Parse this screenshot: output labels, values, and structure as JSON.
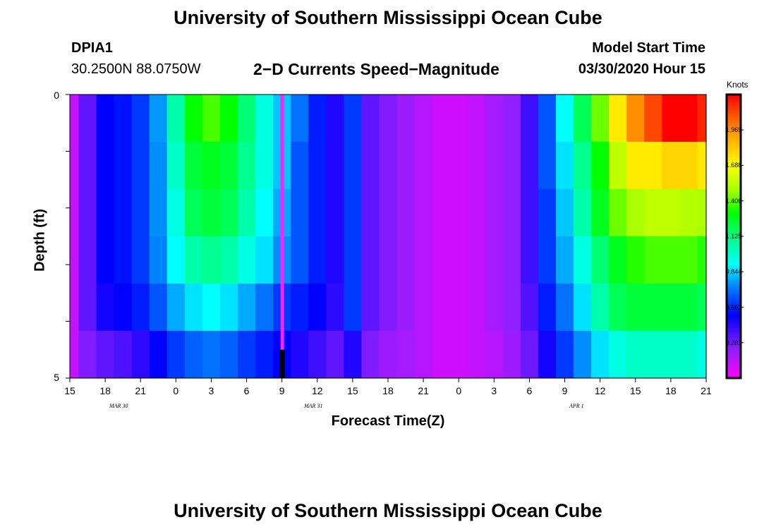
{
  "header": {
    "title": "University of Southern Mississippi Ocean Cube",
    "station": "DPIA1",
    "coords": "30.2500N 88.0750W",
    "subtitle": "2−D Currents Speed−Magnitude",
    "model_label": "Model Start Time",
    "model_time": "03/30/2020 Hour 15"
  },
  "footer": {
    "title": "University of Southern Mississippi Ocean Cube"
  },
  "colors": {
    "scale": [
      "#ff00ff",
      "#9020ff",
      "#0000ff",
      "#0080ff",
      "#00ffff",
      "#00ff80",
      "#00ff00",
      "#a0ff00",
      "#ffff00",
      "#ffa000",
      "#ff0000"
    ]
  },
  "chart_data": {
    "type": "heatmap",
    "title": "2−D Currents Speed−Magnitude",
    "xlabel": "Forecast Time(Z)",
    "ylabel": "Depth (ft)",
    "x_tick_labels": [
      "15",
      "18",
      "21",
      "0",
      "3",
      "6",
      "9",
      "12",
      "15",
      "18",
      "21",
      "0",
      "3",
      "6",
      "9",
      "12",
      "15",
      "18",
      "21"
    ],
    "date_labels": [
      "MAR 30",
      "MAR 31",
      "APR 1"
    ],
    "y_tick_labels": [
      "0",
      "5"
    ],
    "ylim": [
      5,
      0
    ],
    "colorbar": {
      "unit": "Knots",
      "range": [
        0,
        2.25
      ],
      "ticks": [
        "1.969",
        "1.688",
        "1.406",
        "1.125",
        "0.844",
        "0.562",
        "0.281"
      ],
      "tick_values": [
        1.969,
        1.688,
        1.406,
        1.125,
        0.844,
        0.562,
        0.281
      ]
    },
    "current_time_marker": {
      "hour": 18,
      "depth_from": 4.5,
      "depth_to": 5
    },
    "hours": [
      0,
      1.5,
      3,
      4.5,
      6,
      7.5,
      9,
      10.5,
      12,
      13.5,
      15,
      16.5,
      18,
      19.5,
      21,
      22.5,
      24,
      25.5,
      27,
      28.5,
      30,
      31.5,
      33,
      34.5,
      36,
      37.5,
      39,
      40.5,
      42,
      43.5,
      45,
      46.5,
      48,
      49.5,
      51,
      52.5,
      54
    ],
    "depth_layers": [
      0,
      1,
      2,
      3,
      4,
      5
    ],
    "speed_knots": [
      [
        0.12,
        0.3,
        0.45,
        0.48,
        0.55,
        0.72,
        1.05,
        1.35,
        1.45,
        1.35,
        1.15,
        0.95,
        0.8,
        0.65,
        0.5,
        0.4,
        0.55,
        0.3,
        0.25,
        0.2,
        0.15,
        0.1,
        0.1,
        0.12,
        0.18,
        0.22,
        0.35,
        0.6,
        0.9,
        1.2,
        1.5,
        1.85,
        2.05,
        2.15,
        2.25,
        2.25,
        2.2
      ],
      [
        0.12,
        0.3,
        0.45,
        0.48,
        0.55,
        0.7,
        1.0,
        1.25,
        1.3,
        1.25,
        1.1,
        0.95,
        0.8,
        0.6,
        0.5,
        0.4,
        0.55,
        0.3,
        0.25,
        0.2,
        0.15,
        0.1,
        0.1,
        0.12,
        0.18,
        0.22,
        0.35,
        0.6,
        0.85,
        1.1,
        1.35,
        1.65,
        1.85,
        1.85,
        1.9,
        1.9,
        1.85
      ],
      [
        0.12,
        0.3,
        0.45,
        0.48,
        0.55,
        0.7,
        0.95,
        1.2,
        1.25,
        1.2,
        1.05,
        0.9,
        0.75,
        0.6,
        0.5,
        0.4,
        0.55,
        0.3,
        0.25,
        0.2,
        0.15,
        0.1,
        0.1,
        0.12,
        0.18,
        0.22,
        0.35,
        0.55,
        0.8,
        1.05,
        1.3,
        1.5,
        1.6,
        1.65,
        1.65,
        1.62,
        1.6
      ],
      [
        0.12,
        0.3,
        0.45,
        0.48,
        0.55,
        0.68,
        0.9,
        1.05,
        1.1,
        1.05,
        0.95,
        0.85,
        0.7,
        0.6,
        0.5,
        0.4,
        0.55,
        0.3,
        0.25,
        0.2,
        0.15,
        0.1,
        0.1,
        0.12,
        0.18,
        0.22,
        0.35,
        0.55,
        0.75,
        0.95,
        1.15,
        1.3,
        1.4,
        1.45,
        1.45,
        1.45,
        1.4
      ],
      [
        0.12,
        0.3,
        0.42,
        0.45,
        0.5,
        0.6,
        0.75,
        0.85,
        0.9,
        0.85,
        0.75,
        0.65,
        0.55,
        0.5,
        0.45,
        0.38,
        0.55,
        0.3,
        0.25,
        0.2,
        0.15,
        0.1,
        0.1,
        0.12,
        0.18,
        0.22,
        0.32,
        0.5,
        0.65,
        0.85,
        1.05,
        1.2,
        1.25,
        1.25,
        1.25,
        1.25,
        1.2
      ],
      [
        0.12,
        0.25,
        0.3,
        0.33,
        0.38,
        0.45,
        0.55,
        0.62,
        0.65,
        0.62,
        0.55,
        0.5,
        0.45,
        0.4,
        0.35,
        0.3,
        0.4,
        0.25,
        0.2,
        0.18,
        0.15,
        0.1,
        0.1,
        0.12,
        0.15,
        0.2,
        0.28,
        0.42,
        0.55,
        0.7,
        0.85,
        0.95,
        1.0,
        1.0,
        1.0,
        1.0,
        0.95
      ]
    ]
  }
}
